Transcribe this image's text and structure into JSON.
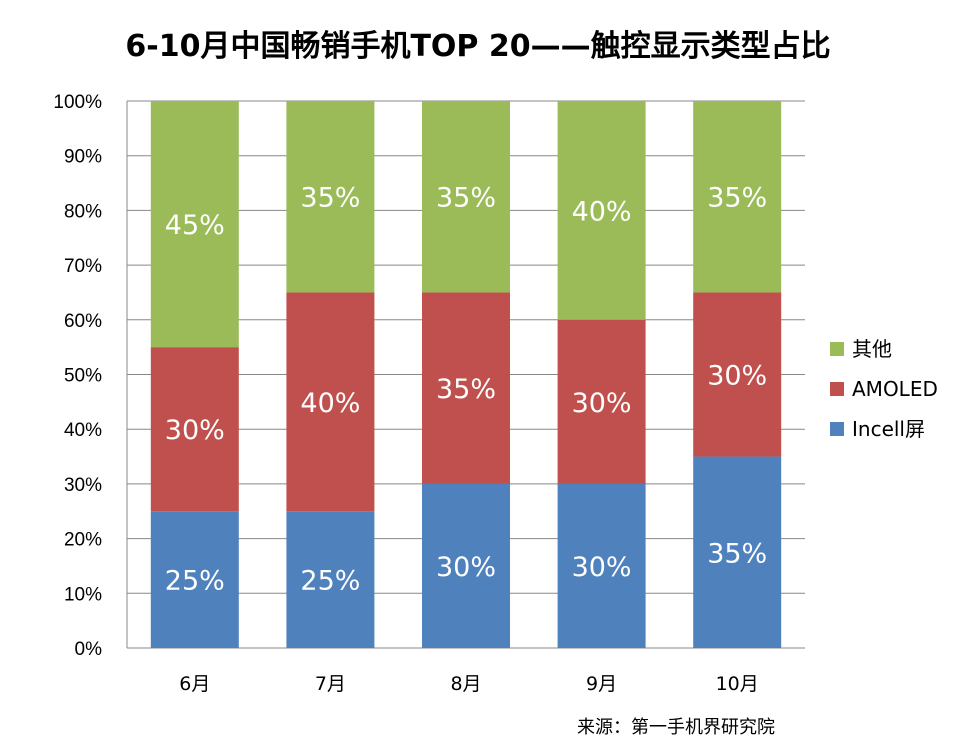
{
  "chart_data": {
    "type": "bar",
    "stacked": true,
    "title": "6-10月中国畅销手机TOP 20——触控显示类型占比",
    "categories": [
      "6月",
      "7月",
      "8月",
      "9月",
      "10月"
    ],
    "series": [
      {
        "name": "Incell屏",
        "color": "#4F81BD",
        "values": [
          25,
          25,
          30,
          30,
          35
        ],
        "labels": [
          "25%",
          "25%",
          "30%",
          "30%",
          "35%"
        ]
      },
      {
        "name": "AMOLED",
        "color": "#C0504D",
        "values": [
          30,
          40,
          35,
          30,
          30
        ],
        "labels": [
          "30%",
          "40%",
          "35%",
          "30%",
          "30%"
        ]
      },
      {
        "name": "其他",
        "color": "#9BBB59",
        "values": [
          45,
          35,
          35,
          40,
          35
        ],
        "labels": [
          "45%",
          "35%",
          "35%",
          "40%",
          "35%"
        ]
      }
    ],
    "ylim": [
      0,
      100
    ],
    "yticks": [
      "0%",
      "10%",
      "20%",
      "30%",
      "40%",
      "50%",
      "60%",
      "70%",
      "80%",
      "90%",
      "100%"
    ],
    "xlabel": "",
    "ylabel": "",
    "grid": true,
    "legend_position": "right",
    "legend_order": [
      "其他",
      "AMOLED",
      "Incell屏"
    ]
  },
  "source": "来源：第一手机界研究院"
}
